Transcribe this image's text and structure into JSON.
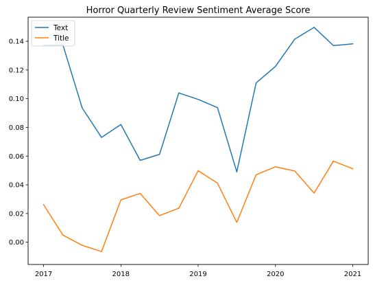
{
  "chart_data": {
    "type": "line",
    "title": "Horror Quarterly Review Sentiment Average Score",
    "xlabel": "",
    "ylabel": "",
    "x": [
      2017.0,
      2017.25,
      2017.5,
      2017.75,
      2018.0,
      2018.25,
      2018.5,
      2018.75,
      2019.0,
      2019.25,
      2019.5,
      2019.75,
      2020.0,
      2020.25,
      2020.5,
      2020.75,
      2021.0
    ],
    "x_ticks": [
      2017,
      2018,
      2019,
      2020,
      2021
    ],
    "x_tick_labels": [
      "2017",
      "2018",
      "2019",
      "2020",
      "2021"
    ],
    "xlim": [
      2016.8,
      2021.2
    ],
    "y_ticks": [
      0.0,
      0.02,
      0.04,
      0.06,
      0.08,
      0.1,
      0.12,
      0.14
    ],
    "y_tick_labels": [
      "0.00",
      "0.02",
      "0.04",
      "0.06",
      "0.08",
      "0.10",
      "0.12",
      "0.14"
    ],
    "ylim": [
      -0.0155,
      0.1568
    ],
    "grid": false,
    "legend_placement": "top-left",
    "series": [
      {
        "name": "Text",
        "color": "#1f77b4",
        "values": [
          0.137,
          0.1375,
          0.0935,
          0.073,
          0.082,
          0.057,
          0.0612,
          0.104,
          0.0995,
          0.0938,
          0.049,
          0.111,
          0.1225,
          0.1415,
          0.1497,
          0.137,
          0.1382
        ]
      },
      {
        "name": "Title",
        "color": "#ff7f0e",
        "values": [
          0.0262,
          0.005,
          -0.0022,
          -0.0065,
          0.0295,
          0.034,
          0.0185,
          0.0237,
          0.0498,
          0.0412,
          0.0138,
          0.047,
          0.0525,
          0.0496,
          0.0342,
          0.0565,
          0.0512
        ]
      }
    ]
  }
}
